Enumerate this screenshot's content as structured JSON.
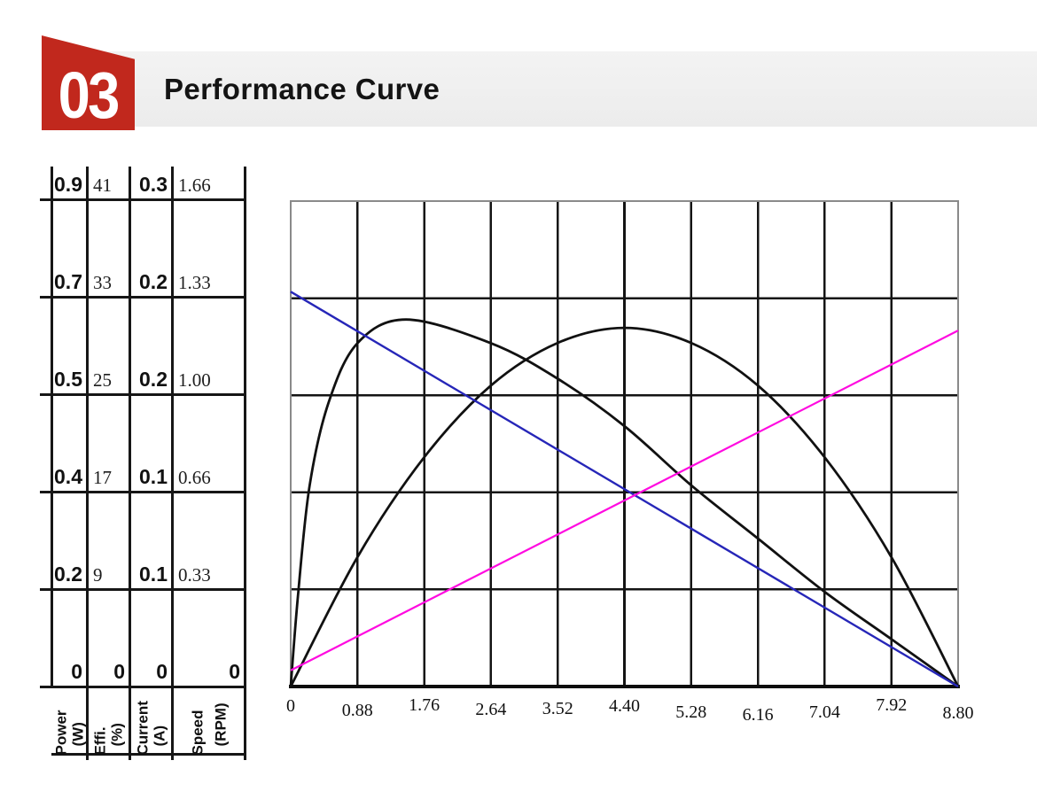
{
  "header": {
    "badge": "03",
    "title": "Performance Curve",
    "badge_color": "#c1281d",
    "bar_color": "#efefef"
  },
  "axis_table": {
    "columns": [
      {
        "name": "Power",
        "unit": "(W)",
        "style": "bold",
        "values": [
          "0.9",
          "0.7",
          "0.5",
          "0.4",
          "0.2",
          "0"
        ]
      },
      {
        "name": "Effi.",
        "unit": "(%)",
        "style": "serif",
        "values": [
          "41",
          "33",
          "25",
          "17",
          "9",
          "0"
        ]
      },
      {
        "name": "Current",
        "unit": "(A)",
        "style": "bold",
        "values": [
          "0.3",
          "0.2",
          "0.2",
          "0.1",
          "0.1",
          "0"
        ]
      },
      {
        "name": "Speed",
        "unit": "(RPM)",
        "style": "serif",
        "values": [
          "1.66",
          "1.33",
          "1.00",
          "0.66",
          "0.33",
          "0"
        ]
      }
    ]
  },
  "chart_data": {
    "type": "line",
    "title": "Performance Curve",
    "xlabel": "",
    "x_range": [
      0,
      8.8
    ],
    "x_ticks": [
      "0",
      "0.88",
      "1.76",
      "2.64",
      "3.52",
      "4.40",
      "5.28",
      "6.16",
      "7.04",
      "7.92",
      "8.80"
    ],
    "grid": {
      "columns": 10,
      "rows": 5,
      "grid_on": true
    },
    "y_axes": [
      {
        "name": "Power",
        "unit": "W",
        "gridline_values": [
          0.9,
          0.7,
          0.5,
          0.4,
          0.2,
          0
        ]
      },
      {
        "name": "Effi.",
        "unit": "%",
        "gridline_values": [
          41,
          33,
          25,
          17,
          9,
          0
        ]
      },
      {
        "name": "Current",
        "unit": "A",
        "gridline_values": [
          0.3,
          0.2,
          0.2,
          0.1,
          0.1,
          0
        ]
      },
      {
        "name": "Speed",
        "unit": "RPM",
        "gridline_values": [
          1.66,
          1.33,
          1.0,
          0.66,
          0.33,
          0
        ]
      }
    ],
    "series": [
      {
        "name": "speed",
        "axis": "Speed (RPM)",
        "axis_max": 1.66,
        "color": "#2626b8",
        "shape": "line",
        "points": [
          [
            0,
            1.35
          ],
          [
            8.8,
            0
          ]
        ]
      },
      {
        "name": "current",
        "axis": "Current (A)",
        "axis_max": 0.3,
        "color": "#ff0ae0",
        "shape": "line",
        "points": [
          [
            0,
            0.01
          ],
          [
            8.8,
            0.22
          ]
        ]
      },
      {
        "name": "power",
        "axis": "Power (W)",
        "axis_max": 0.9,
        "color": "#111111",
        "shape": "curve",
        "points": [
          [
            0,
            0
          ],
          [
            0.88,
            0.24
          ],
          [
            1.76,
            0.425
          ],
          [
            2.64,
            0.558
          ],
          [
            3.52,
            0.637
          ],
          [
            4.4,
            0.665
          ],
          [
            5.28,
            0.637
          ],
          [
            6.16,
            0.558
          ],
          [
            7.04,
            0.425
          ],
          [
            7.92,
            0.24
          ],
          [
            8.8,
            0
          ]
        ]
      },
      {
        "name": "efficiency",
        "axis": "Effi. (%)",
        "axis_max": 41,
        "color": "#111111",
        "shape": "curve",
        "points": [
          [
            0,
            0
          ],
          [
            0.1,
            8
          ],
          [
            0.25,
            17
          ],
          [
            0.5,
            24
          ],
          [
            0.88,
            29
          ],
          [
            1.52,
            31
          ],
          [
            2.64,
            29
          ],
          [
            3.52,
            26
          ],
          [
            4.4,
            22
          ],
          [
            5.28,
            17
          ],
          [
            6.16,
            12.5
          ],
          [
            7.04,
            8
          ],
          [
            7.92,
            4
          ],
          [
            8.8,
            0
          ]
        ]
      }
    ],
    "legend": "none",
    "colors": {
      "speed": "#2626b8",
      "current": "#ff0ae0",
      "power": "#111111",
      "efficiency": "#111111"
    }
  }
}
